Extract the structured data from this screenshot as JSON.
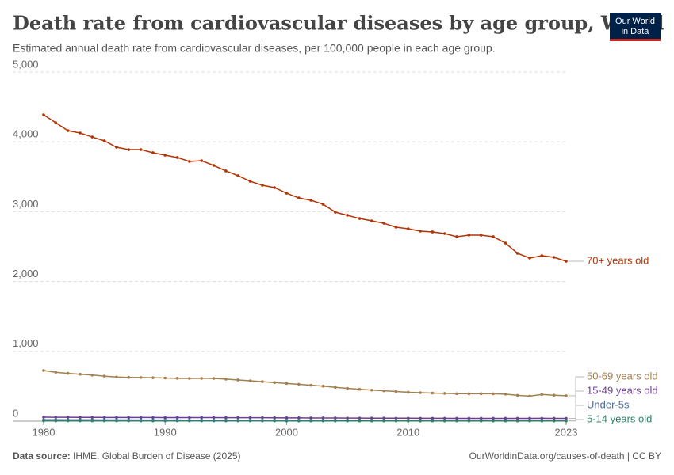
{
  "chart_data": {
    "type": "line",
    "title": "Death rate from cardiovascular diseases by age group, World",
    "subtitle": "Estimated annual death rate from cardiovascular diseases, per 100,000 people in each age group.",
    "logo": [
      "Our World",
      "in Data"
    ],
    "source_label": "Data source:",
    "source": "IHME, Global Burden of Disease (2025)",
    "footer_right": "OurWorldinData.org/causes-of-death | CC BY",
    "x": [
      1980,
      1981,
      1982,
      1983,
      1984,
      1985,
      1986,
      1987,
      1988,
      1989,
      1990,
      1991,
      1992,
      1993,
      1994,
      1995,
      1996,
      1997,
      1998,
      1999,
      2000,
      2001,
      2002,
      2003,
      2004,
      2005,
      2006,
      2007,
      2008,
      2009,
      2010,
      2011,
      2012,
      2013,
      2014,
      2015,
      2016,
      2017,
      2018,
      2019,
      2020,
      2021,
      2022,
      2023
    ],
    "xlim": [
      1980,
      2023
    ],
    "xticks": [
      1980,
      1990,
      2000,
      2010,
      2023
    ],
    "ylim": [
      0,
      5000
    ],
    "yticks": [
      0,
      {
        "value": 1000,
        "label": "1,000"
      },
      {
        "value": 2000,
        "label": "2,000"
      },
      {
        "value": 3000,
        "label": "3,000"
      },
      {
        "value": 4000,
        "label": "4,000"
      },
      {
        "value": 5000,
        "label": "5,000"
      }
    ],
    "grid": true,
    "series": [
      {
        "name": "70+ years old",
        "color": "#b13507",
        "values": [
          4388,
          4274,
          4161,
          4127,
          4070,
          4014,
          3923,
          3889,
          3889,
          3844,
          3810,
          3776,
          3719,
          3730,
          3662,
          3583,
          3515,
          3435,
          3379,
          3345,
          3265,
          3197,
          3163,
          3107,
          2993,
          2948,
          2902,
          2868,
          2834,
          2778,
          2755,
          2721,
          2710,
          2687,
          2642,
          2664,
          2664,
          2642,
          2551,
          2404,
          2336,
          2370,
          2347,
          2290
        ]
      },
      {
        "name": "50-69 years old",
        "color": "#a2804f",
        "values": [
          726,
          700,
          685,
          672,
          660,
          645,
          632,
          627,
          625,
          622,
          618,
          614,
          612,
          613,
          612,
          602,
          590,
          578,
          566,
          553,
          540,
          528,
          515,
          502,
          485,
          470,
          457,
          445,
          435,
          425,
          414,
          408,
          402,
          398,
          394,
          393,
          393,
          392,
          387,
          370,
          358,
          382,
          372,
          364
        ]
      },
      {
        "name": "15-49 years old",
        "color": "#6d3e91",
        "values": [
          56,
          55,
          55,
          54,
          54,
          53,
          53,
          52,
          52,
          52,
          51,
          51,
          51,
          51,
          51,
          50,
          50,
          49,
          49,
          48,
          47,
          47,
          46,
          46,
          45,
          44,
          44,
          43,
          43,
          42,
          42,
          41,
          41,
          41,
          40,
          40,
          40,
          40,
          40,
          40,
          40,
          41,
          40,
          39
        ]
      },
      {
        "name": "Under-5s",
        "color": "#4c6a9c",
        "values": [
          20,
          19.5,
          19,
          18.5,
          18,
          17.5,
          17,
          16.5,
          16,
          15.5,
          15,
          15,
          14.5,
          14,
          14,
          13.5,
          13,
          13,
          12.5,
          12,
          12,
          11.5,
          11,
          11,
          10.5,
          10,
          10,
          9.5,
          9,
          9,
          8.5,
          8.5,
          8,
          8,
          7.5,
          7.5,
          7,
          7,
          7,
          6.5,
          6.5,
          6.5,
          6,
          6
        ]
      },
      {
        "name": "5-14 years old",
        "color": "#2c8465",
        "values": [
          4.5,
          4.5,
          4.4,
          4.4,
          4.3,
          4.3,
          4.2,
          4.2,
          4.1,
          4.1,
          4,
          4,
          3.9,
          3.9,
          3.8,
          3.8,
          3.7,
          3.7,
          3.6,
          3.6,
          3.5,
          3.5,
          3.4,
          3.4,
          3.3,
          3.3,
          3.2,
          3.2,
          3.1,
          3.1,
          3,
          3,
          2.9,
          2.9,
          2.9,
          2.8,
          2.8,
          2.8,
          2.7,
          2.7,
          2.7,
          2.7,
          2.6,
          2.6
        ]
      }
    ]
  }
}
